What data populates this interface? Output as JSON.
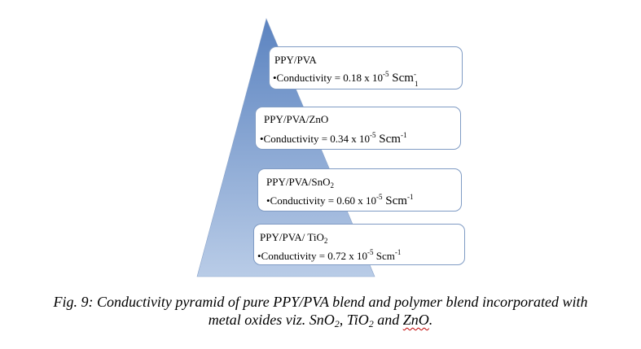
{
  "colors": {
    "pyramid_top": "#5b83c0",
    "pyramid_bottom": "#b9cce7",
    "box_border": "#7f9bc4"
  },
  "levels": [
    {
      "name_base": "PPY/PVA",
      "name_sub": "",
      "cond_prefix": "•Conductivity = 0.18 x 10",
      "cond_exp": "-5",
      "cond_unit": " Scm",
      "cond_unit_exp": "-",
      "cond_wrap": "1"
    },
    {
      "name_base": "PPY/PVA/ZnO",
      "name_sub": "",
      "cond_prefix": "•Conductivity = 0.34 x 10",
      "cond_exp": "-5",
      "cond_unit": " Scm",
      "cond_unit_exp": "-1"
    },
    {
      "name_base": "PPY/PVA/SnO",
      "name_sub": "2",
      "cond_prefix": "•Conductivity = 0.60 x 10",
      "cond_exp": "-5",
      "cond_unit": " Scm",
      "cond_unit_exp": "-1"
    },
    {
      "name_base": "PPY/PVA/ TiO",
      "name_sub": "2",
      "cond_prefix": "•Conductivity = 0.72 x 10",
      "cond_exp": "-5",
      "cond_unit": " Scm",
      "cond_unit_exp": "-1"
    }
  ],
  "caption": {
    "line1": "Fig. 9:  Conductivity pyramid of pure PPY/PVA blend and polymer blend incorporated with",
    "line2_a": "metal oxides viz. SnO",
    "line2_sub1": "2",
    "line2_b": ", TiO",
    "line2_sub2": "2",
    "line2_c": " and ",
    "line2_zno": "ZnO",
    "line2_end": "."
  }
}
